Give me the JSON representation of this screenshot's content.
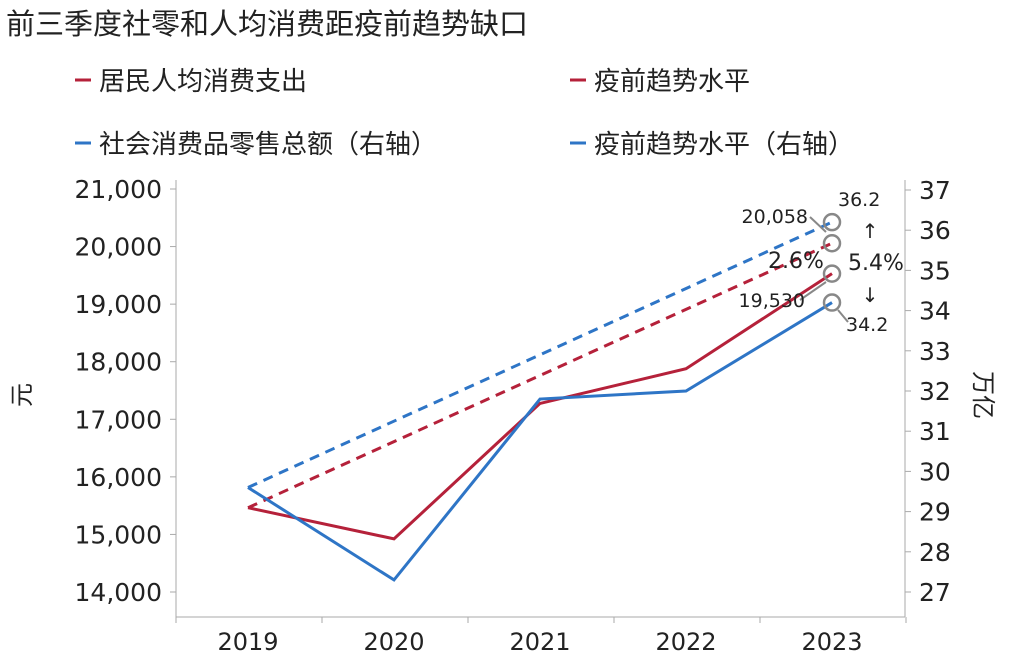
{
  "chart_data": {
    "type": "line",
    "title": "前三季度社零和人均消费距疫前趋势缺口",
    "categories": [
      "2019",
      "2020",
      "2021",
      "2022",
      "2023"
    ],
    "ylabel": "元",
    "y2label": "万亿",
    "ylim": [
      14000,
      21000
    ],
    "y2lim": [
      27,
      37
    ],
    "yticks": [
      "14,000",
      "15,000",
      "16,000",
      "17,000",
      "18,000",
      "19,000",
      "20,000",
      "21,000"
    ],
    "y2ticks": [
      "27",
      "28",
      "29",
      "30",
      "31",
      "32",
      "33",
      "34",
      "35",
      "36",
      "37"
    ],
    "series": [
      {
        "name": "居民人均消费支出",
        "axis": "left",
        "style": "solid",
        "color": "#b5213a",
        "values": [
          15464,
          14923,
          17275,
          17878,
          19530
        ]
      },
      {
        "name": "疫前趋势水平",
        "axis": "left",
        "style": "dashed",
        "color": "#b5213a",
        "points": [
          [
            2019,
            15464
          ],
          [
            2023,
            20058
          ]
        ]
      },
      {
        "name": "社会消费品零售总额（右轴）",
        "axis": "right",
        "style": "solid",
        "color": "#2e75c6",
        "values": [
          29.6,
          27.3,
          31.8,
          32.0,
          34.2
        ]
      },
      {
        "name": "疫前趋势水平（右轴）",
        "axis": "right",
        "style": "dashed",
        "color": "#2e75c6",
        "points": [
          [
            2019,
            29.6
          ],
          [
            2023,
            36.2
          ]
        ]
      }
    ],
    "annotations": {
      "a1": "20,058",
      "a2": "19,530",
      "a3": "2.6%",
      "a4": "36.2",
      "a5": "34.2",
      "a6": "5.4%"
    },
    "legend": "top"
  }
}
